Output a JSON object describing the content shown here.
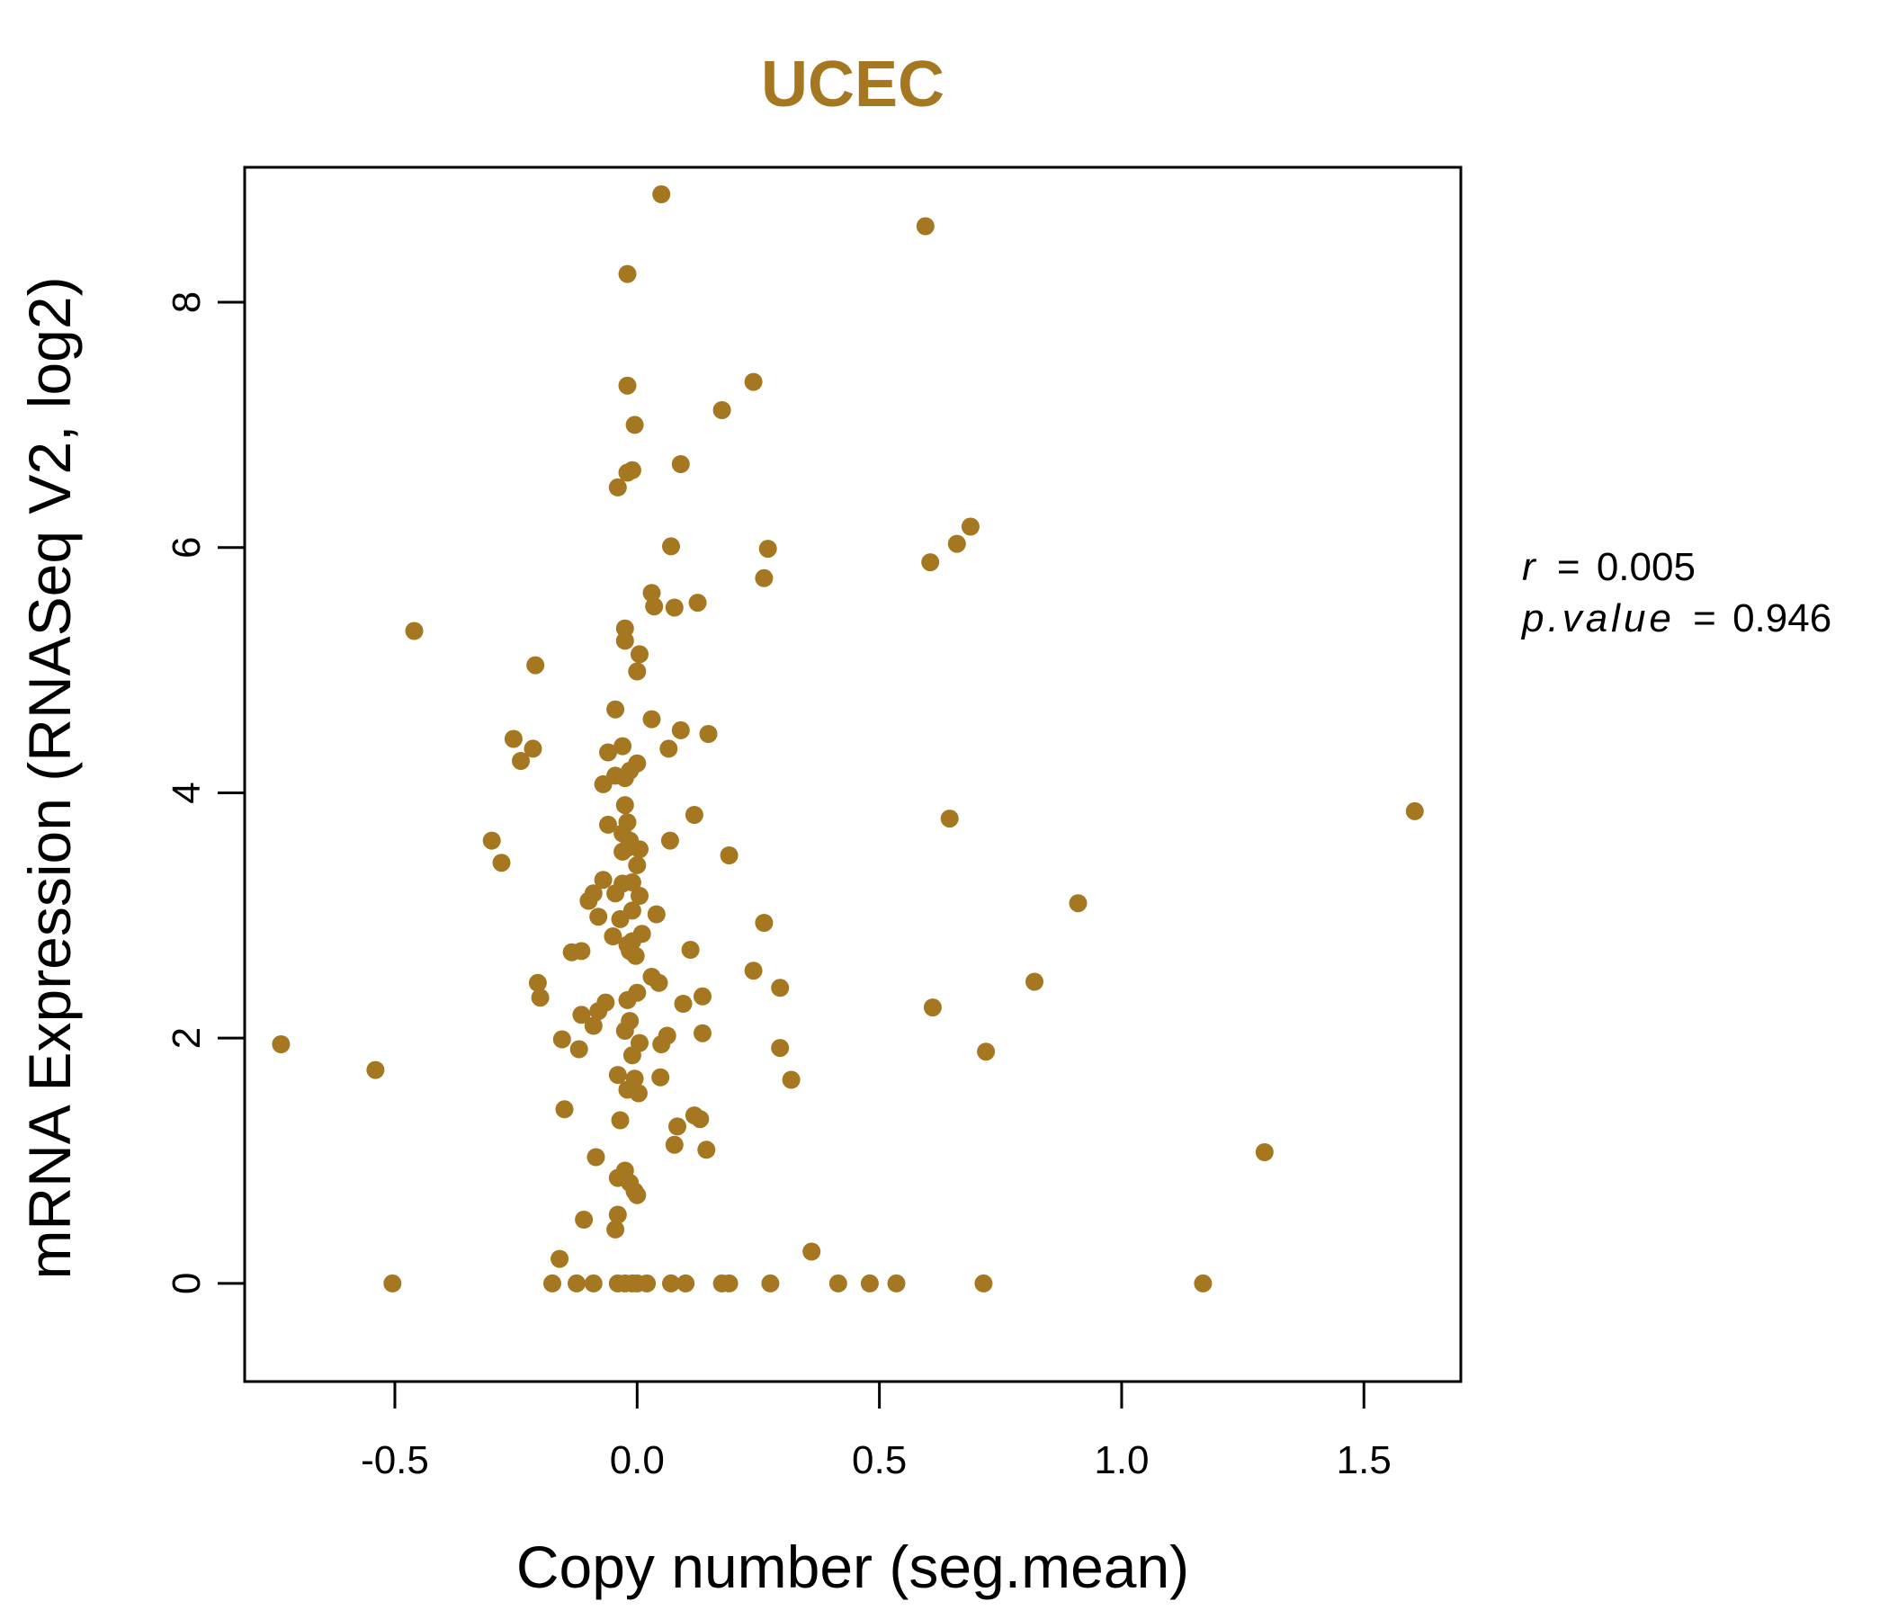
{
  "chart_data": {
    "type": "scatter",
    "title": "UCEC",
    "xlabel": "Copy number (seg.mean)",
    "ylabel": "mRNA Expression (RNASeq V2, log2)",
    "xlim": [
      -0.81,
      1.7
    ],
    "ylim": [
      -0.8,
      9.1
    ],
    "x_ticks": [
      -0.5,
      0.0,
      0.5,
      1.0,
      1.5
    ],
    "x_tick_labels": [
      "-0.5",
      "0.0",
      "0.5",
      "1.0",
      "1.5"
    ],
    "y_ticks": [
      0,
      2,
      4,
      6,
      8
    ],
    "y_tick_labels": [
      "0",
      "2",
      "4",
      "6",
      "8"
    ],
    "point_color": "#A57721",
    "grid": false,
    "stats": {
      "r_symbol": "r",
      "r_value": "0.005",
      "p_symbol": "p.value",
      "p_value": "0.946",
      "equals": "="
    },
    "points": [
      {
        "x": 0.05,
        "y": 8.88
      },
      {
        "x": 0.595,
        "y": 8.62
      },
      {
        "x": -0.02,
        "y": 8.23
      },
      {
        "x": 0.24,
        "y": 7.35
      },
      {
        "x": -0.02,
        "y": 7.32
      },
      {
        "x": 0.175,
        "y": 7.12
      },
      {
        "x": -0.005,
        "y": 7.0
      },
      {
        "x": 0.09,
        "y": 6.68
      },
      {
        "x": -0.02,
        "y": 6.61
      },
      {
        "x": -0.01,
        "y": 6.63
      },
      {
        "x": -0.04,
        "y": 6.49
      },
      {
        "x": 0.688,
        "y": 6.17
      },
      {
        "x": 0.66,
        "y": 6.03
      },
      {
        "x": 0.07,
        "y": 6.01
      },
      {
        "x": 0.27,
        "y": 5.99
      },
      {
        "x": 0.605,
        "y": 5.88
      },
      {
        "x": 0.262,
        "y": 5.75
      },
      {
        "x": 0.03,
        "y": 5.63
      },
      {
        "x": 0.035,
        "y": 5.52
      },
      {
        "x": 0.077,
        "y": 5.51
      },
      {
        "x": 0.125,
        "y": 5.55
      },
      {
        "x": -0.46,
        "y": 5.32
      },
      {
        "x": -0.025,
        "y": 5.34
      },
      {
        "x": -0.025,
        "y": 5.24
      },
      {
        "x": 0.005,
        "y": 5.13
      },
      {
        "x": 0.0,
        "y": 4.99
      },
      {
        "x": -0.21,
        "y": 5.04
      },
      {
        "x": -0.045,
        "y": 4.68
      },
      {
        "x": 0.03,
        "y": 4.6
      },
      {
        "x": 0.09,
        "y": 4.51
      },
      {
        "x": 0.147,
        "y": 4.48
      },
      {
        "x": -0.255,
        "y": 4.44
      },
      {
        "x": -0.215,
        "y": 4.36
      },
      {
        "x": -0.03,
        "y": 4.38
      },
      {
        "x": 0.065,
        "y": 4.36
      },
      {
        "x": -0.06,
        "y": 4.33
      },
      {
        "x": -0.24,
        "y": 4.26
      },
      {
        "x": 0.0,
        "y": 4.24
      },
      {
        "x": -0.015,
        "y": 4.18
      },
      {
        "x": -0.045,
        "y": 4.14
      },
      {
        "x": -0.025,
        "y": 4.12
      },
      {
        "x": -0.07,
        "y": 4.07
      },
      {
        "x": -0.025,
        "y": 3.9
      },
      {
        "x": 0.118,
        "y": 3.82
      },
      {
        "x": 0.645,
        "y": 3.79
      },
      {
        "x": 1.605,
        "y": 3.85
      },
      {
        "x": -0.06,
        "y": 3.74
      },
      {
        "x": -0.02,
        "y": 3.76
      },
      {
        "x": -0.03,
        "y": 3.67
      },
      {
        "x": -0.015,
        "y": 3.61
      },
      {
        "x": -0.02,
        "y": 3.55
      },
      {
        "x": 0.068,
        "y": 3.61
      },
      {
        "x": -0.3,
        "y": 3.61
      },
      {
        "x": 0.005,
        "y": 3.54
      },
      {
        "x": -0.03,
        "y": 3.52
      },
      {
        "x": 0.19,
        "y": 3.49
      },
      {
        "x": -0.28,
        "y": 3.43
      },
      {
        "x": 0.0,
        "y": 3.41
      },
      {
        "x": -0.07,
        "y": 3.29
      },
      {
        "x": -0.03,
        "y": 3.26
      },
      {
        "x": -0.01,
        "y": 3.27
      },
      {
        "x": -0.045,
        "y": 3.18
      },
      {
        "x": -0.09,
        "y": 3.18
      },
      {
        "x": 0.005,
        "y": 3.16
      },
      {
        "x": -0.1,
        "y": 3.12
      },
      {
        "x": 0.91,
        "y": 3.1
      },
      {
        "x": -0.01,
        "y": 3.04
      },
      {
        "x": 0.04,
        "y": 3.01
      },
      {
        "x": -0.08,
        "y": 2.99
      },
      {
        "x": -0.035,
        "y": 2.97
      },
      {
        "x": 0.262,
        "y": 2.94
      },
      {
        "x": -0.05,
        "y": 2.83
      },
      {
        "x": 0.01,
        "y": 2.85
      },
      {
        "x": -0.01,
        "y": 2.79
      },
      {
        "x": -0.02,
        "y": 2.76
      },
      {
        "x": -0.015,
        "y": 2.71
      },
      {
        "x": -0.003,
        "y": 2.67
      },
      {
        "x": 0.11,
        "y": 2.72
      },
      {
        "x": -0.115,
        "y": 2.71
      },
      {
        "x": -0.135,
        "y": 2.7
      },
      {
        "x": 0.24,
        "y": 2.55
      },
      {
        "x": 0.03,
        "y": 2.5
      },
      {
        "x": 0.045,
        "y": 2.45
      },
      {
        "x": 0.82,
        "y": 2.46
      },
      {
        "x": -0.205,
        "y": 2.45
      },
      {
        "x": 0.295,
        "y": 2.41
      },
      {
        "x": 0.0,
        "y": 2.37
      },
      {
        "x": 0.135,
        "y": 2.34
      },
      {
        "x": -0.02,
        "y": 2.31
      },
      {
        "x": -0.2,
        "y": 2.33
      },
      {
        "x": 0.095,
        "y": 2.28
      },
      {
        "x": -0.065,
        "y": 2.29
      },
      {
        "x": 0.61,
        "y": 2.25
      },
      {
        "x": -0.08,
        "y": 2.22
      },
      {
        "x": -0.115,
        "y": 2.19
      },
      {
        "x": -0.015,
        "y": 2.14
      },
      {
        "x": -0.09,
        "y": 2.1
      },
      {
        "x": -0.025,
        "y": 2.06
      },
      {
        "x": 0.135,
        "y": 2.04
      },
      {
        "x": 0.062,
        "y": 2.02
      },
      {
        "x": -0.155,
        "y": 1.99
      },
      {
        "x": -0.735,
        "y": 1.95
      },
      {
        "x": 0.005,
        "y": 1.96
      },
      {
        "x": 0.05,
        "y": 1.95
      },
      {
        "x": 0.295,
        "y": 1.92
      },
      {
        "x": -0.12,
        "y": 1.91
      },
      {
        "x": 0.72,
        "y": 1.89
      },
      {
        "x": -0.01,
        "y": 1.86
      },
      {
        "x": -0.54,
        "y": 1.74
      },
      {
        "x": -0.04,
        "y": 1.7
      },
      {
        "x": 0.048,
        "y": 1.68
      },
      {
        "x": 0.318,
        "y": 1.66
      },
      {
        "x": -0.005,
        "y": 1.67
      },
      {
        "x": -0.02,
        "y": 1.58
      },
      {
        "x": 0.003,
        "y": 1.55
      },
      {
        "x": -0.15,
        "y": 1.42
      },
      {
        "x": 0.118,
        "y": 1.37
      },
      {
        "x": 0.13,
        "y": 1.34
      },
      {
        "x": -0.035,
        "y": 1.33
      },
      {
        "x": 0.083,
        "y": 1.28
      },
      {
        "x": 0.077,
        "y": 1.13
      },
      {
        "x": 0.143,
        "y": 1.09
      },
      {
        "x": 1.295,
        "y": 1.07
      },
      {
        "x": -0.085,
        "y": 1.03
      },
      {
        "x": -0.025,
        "y": 0.92
      },
      {
        "x": -0.04,
        "y": 0.86
      },
      {
        "x": -0.015,
        "y": 0.82
      },
      {
        "x": -0.005,
        "y": 0.75
      },
      {
        "x": 0.0,
        "y": 0.72
      },
      {
        "x": -0.04,
        "y": 0.56
      },
      {
        "x": -0.11,
        "y": 0.52
      },
      {
        "x": -0.045,
        "y": 0.44
      },
      {
        "x": 0.36,
        "y": 0.26
      },
      {
        "x": -0.16,
        "y": 0.2
      },
      {
        "x": -0.505,
        "y": 0.0
      },
      {
        "x": -0.175,
        "y": 0.0
      },
      {
        "x": -0.125,
        "y": 0.0
      },
      {
        "x": -0.09,
        "y": 0.0
      },
      {
        "x": -0.04,
        "y": 0.0
      },
      {
        "x": -0.025,
        "y": 0.0
      },
      {
        "x": -0.01,
        "y": 0.0
      },
      {
        "x": 0.0,
        "y": 0.0
      },
      {
        "x": 0.02,
        "y": 0.0
      },
      {
        "x": 0.07,
        "y": 0.0
      },
      {
        "x": 0.1,
        "y": 0.0
      },
      {
        "x": 0.175,
        "y": 0.0
      },
      {
        "x": 0.19,
        "y": 0.0
      },
      {
        "x": 0.275,
        "y": 0.0
      },
      {
        "x": 0.415,
        "y": 0.0
      },
      {
        "x": 0.48,
        "y": 0.0
      },
      {
        "x": 0.535,
        "y": 0.0
      },
      {
        "x": 0.715,
        "y": 0.0
      },
      {
        "x": 1.168,
        "y": 0.0
      }
    ]
  }
}
